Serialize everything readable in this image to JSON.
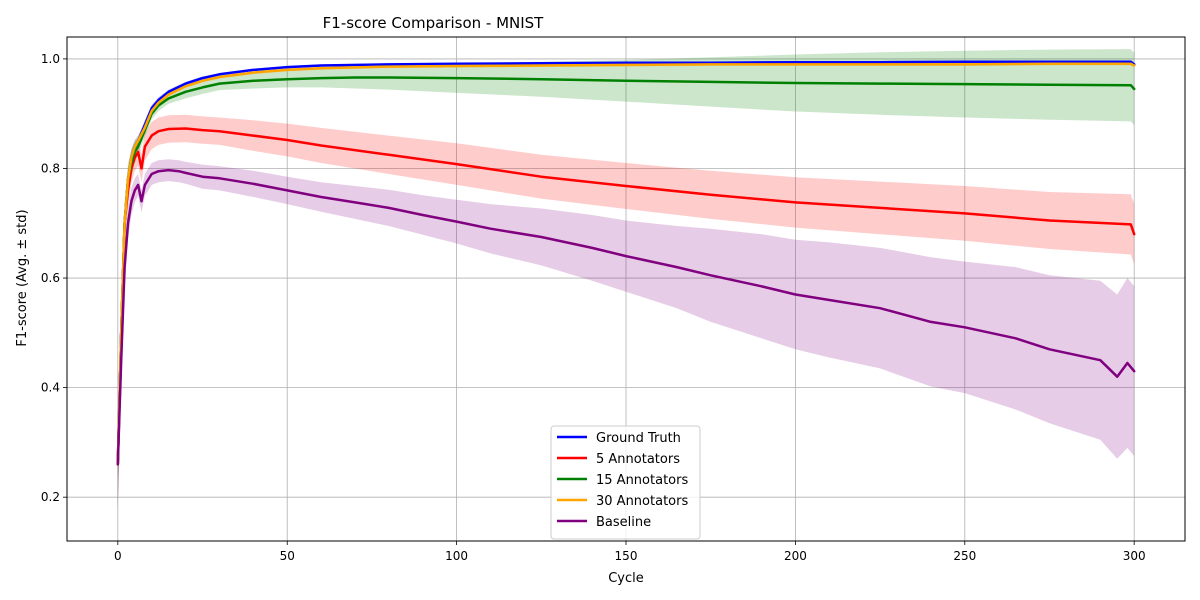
{
  "chart_data": {
    "type": "line",
    "title": "F1-score Comparison - MNIST",
    "xlabel": "Cycle",
    "ylabel": "F1-score (Avg. ± std)",
    "xlim": [
      -15,
      315
    ],
    "ylim": [
      0.12,
      1.04
    ],
    "xticks": [
      0,
      50,
      100,
      150,
      200,
      250,
      300
    ],
    "yticks": [
      0.2,
      0.4,
      0.6,
      0.8,
      1.0
    ],
    "grid": true,
    "legend_position": "lower-center",
    "series": [
      {
        "name": "Ground Truth",
        "color": "#0000ff",
        "fill_alpha": 0.2,
        "x": [
          0,
          1,
          2,
          3,
          4,
          5,
          6,
          8,
          10,
          12,
          15,
          20,
          25,
          30,
          40,
          50,
          60,
          80,
          100,
          125,
          150,
          175,
          200,
          225,
          250,
          275,
          299,
          300
        ],
        "mean": [
          0.26,
          0.5,
          0.7,
          0.78,
          0.82,
          0.84,
          0.85,
          0.88,
          0.91,
          0.925,
          0.94,
          0.955,
          0.965,
          0.972,
          0.98,
          0.985,
          0.988,
          0.99,
          0.991,
          0.992,
          0.993,
          0.993,
          0.994,
          0.994,
          0.995,
          0.995,
          0.995,
          0.99
        ],
        "std": [
          0.08,
          0.05,
          0.03,
          0.02,
          0.015,
          0.012,
          0.01,
          0.008,
          0.006,
          0.005,
          0.004,
          0.003,
          0.003,
          0.002,
          0.002,
          0.002,
          0.002,
          0.002,
          0.002,
          0.002,
          0.002,
          0.002,
          0.002,
          0.002,
          0.002,
          0.002,
          0.002,
          0.002
        ]
      },
      {
        "name": "5 Annotators",
        "color": "#ff0000",
        "fill_alpha": 0.2,
        "x": [
          0,
          1,
          2,
          3,
          4,
          5,
          6,
          7,
          8,
          10,
          12,
          15,
          20,
          25,
          30,
          40,
          50,
          60,
          80,
          100,
          125,
          150,
          175,
          200,
          225,
          250,
          275,
          299,
          300
        ],
        "mean": [
          0.26,
          0.5,
          0.7,
          0.76,
          0.8,
          0.82,
          0.83,
          0.8,
          0.84,
          0.86,
          0.868,
          0.872,
          0.873,
          0.87,
          0.868,
          0.86,
          0.852,
          0.842,
          0.825,
          0.808,
          0.785,
          0.768,
          0.752,
          0.738,
          0.728,
          0.718,
          0.705,
          0.698,
          0.68
        ],
        "std": [
          0.08,
          0.05,
          0.035,
          0.03,
          0.025,
          0.025,
          0.025,
          0.025,
          0.025,
          0.025,
          0.025,
          0.025,
          0.025,
          0.025,
          0.025,
          0.028,
          0.03,
          0.032,
          0.035,
          0.038,
          0.04,
          0.042,
          0.044,
          0.046,
          0.048,
          0.05,
          0.052,
          0.055,
          0.055
        ]
      },
      {
        "name": "15 Annotators",
        "color": "#008000",
        "fill_alpha": 0.2,
        "x": [
          0,
          1,
          2,
          3,
          4,
          5,
          6,
          8,
          10,
          12,
          15,
          20,
          25,
          30,
          40,
          50,
          60,
          70,
          80,
          100,
          125,
          150,
          175,
          200,
          225,
          250,
          275,
          299,
          300
        ],
        "mean": [
          0.26,
          0.5,
          0.7,
          0.78,
          0.81,
          0.83,
          0.84,
          0.87,
          0.9,
          0.915,
          0.928,
          0.94,
          0.948,
          0.955,
          0.96,
          0.963,
          0.965,
          0.966,
          0.966,
          0.965,
          0.963,
          0.96,
          0.958,
          0.956,
          0.955,
          0.954,
          0.953,
          0.952,
          0.945
        ],
        "std": [
          0.08,
          0.05,
          0.035,
          0.03,
          0.025,
          0.02,
          0.015,
          0.012,
          0.01,
          0.01,
          0.01,
          0.012,
          0.012,
          0.012,
          0.014,
          0.015,
          0.017,
          0.02,
          0.022,
          0.027,
          0.032,
          0.038,
          0.045,
          0.052,
          0.057,
          0.061,
          0.064,
          0.066,
          0.066
        ]
      },
      {
        "name": "30 Annotators",
        "color": "#ffa500",
        "fill_alpha": 0.2,
        "x": [
          0,
          1,
          2,
          3,
          4,
          5,
          6,
          8,
          10,
          12,
          15,
          20,
          25,
          30,
          40,
          50,
          60,
          80,
          100,
          125,
          150,
          175,
          200,
          225,
          250,
          275,
          299,
          300
        ],
        "mean": [
          0.26,
          0.5,
          0.7,
          0.78,
          0.82,
          0.84,
          0.85,
          0.875,
          0.905,
          0.92,
          0.935,
          0.95,
          0.96,
          0.967,
          0.975,
          0.98,
          0.983,
          0.986,
          0.987,
          0.988,
          0.989,
          0.99,
          0.99,
          0.99,
          0.99,
          0.991,
          0.991,
          0.988
        ],
        "std": [
          0.08,
          0.05,
          0.03,
          0.02,
          0.015,
          0.012,
          0.01,
          0.008,
          0.006,
          0.005,
          0.004,
          0.003,
          0.003,
          0.003,
          0.003,
          0.003,
          0.003,
          0.003,
          0.003,
          0.003,
          0.003,
          0.003,
          0.003,
          0.003,
          0.003,
          0.003,
          0.003,
          0.003
        ]
      },
      {
        "name": "Baseline",
        "color": "#800080",
        "fill_alpha": 0.2,
        "x": [
          0,
          1,
          2,
          3,
          4,
          5,
          6,
          7,
          8,
          10,
          12,
          15,
          18,
          20,
          25,
          30,
          40,
          50,
          60,
          70,
          80,
          90,
          100,
          110,
          125,
          140,
          150,
          165,
          175,
          190,
          200,
          210,
          225,
          240,
          250,
          265,
          275,
          290,
          295,
          298,
          300
        ],
        "mean": [
          0.26,
          0.45,
          0.62,
          0.7,
          0.74,
          0.76,
          0.77,
          0.74,
          0.77,
          0.79,
          0.795,
          0.797,
          0.795,
          0.792,
          0.785,
          0.782,
          0.772,
          0.76,
          0.748,
          0.738,
          0.728,
          0.715,
          0.703,
          0.69,
          0.675,
          0.655,
          0.64,
          0.62,
          0.605,
          0.585,
          0.57,
          0.56,
          0.545,
          0.52,
          0.51,
          0.49,
          0.47,
          0.45,
          0.42,
          0.445,
          0.43
        ],
        "std": [
          0.08,
          0.06,
          0.04,
          0.03,
          0.025,
          0.022,
          0.02,
          0.02,
          0.02,
          0.02,
          0.02,
          0.02,
          0.02,
          0.02,
          0.022,
          0.022,
          0.024,
          0.025,
          0.027,
          0.03,
          0.033,
          0.036,
          0.04,
          0.045,
          0.052,
          0.06,
          0.065,
          0.075,
          0.085,
          0.095,
          0.1,
          0.105,
          0.11,
          0.118,
          0.12,
          0.13,
          0.135,
          0.145,
          0.15,
          0.155,
          0.155
        ]
      }
    ]
  }
}
